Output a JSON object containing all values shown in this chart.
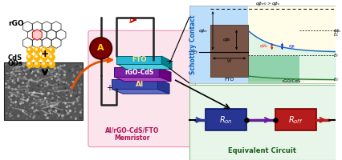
{
  "bg_color": "#ffffff",
  "rgo_label": "rGO",
  "cds_label1": "CdS",
  "cds_label2": "QDs",
  "fto_label": "FTO",
  "rgo_cds_label": "rGO-CdS",
  "al_label": "Al",
  "device_label1": "Al/rGO-CdS/FTO",
  "device_label2": "Memristor",
  "schottky_label": "Schottky Contact",
  "equivalent_label": "Equivalent Circuit",
  "fto_color": "#29b6d4",
  "fto_side_color": "#006064",
  "rgo_cds_color": "#7b1fa2",
  "al_color": "#3949ab",
  "al_side_color": "#1a237e",
  "device_bg": "#fce4ec",
  "schottky_bg_left": "#bbdefb",
  "schottky_bg_right": "#fffde7",
  "equiv_bg": "#e8f5e9",
  "ron_color": "#283593",
  "roff_color": "#b71c1c",
  "ammeter_fc": "#7b0000",
  "ammeter_label": "A",
  "ammeter_label_color": "#ffd600",
  "current_arrow_color": "#dd0000",
  "cds_dot_color": "#ffb300",
  "cds_dot_highlight": "#fff8e1",
  "hex_edge_color": "#333333",
  "hex_red_fc": "#ffcccc",
  "hex_red_ec": "#cc0000",
  "sem_bg": "#555555",
  "orange_arrow": "#e65100",
  "schottky_fto_fc": "#795548",
  "schottky_rgo_fc": "#a5d6a7",
  "wire_color": "#222222",
  "plus_color": "#000000",
  "minus_color": "#000000"
}
